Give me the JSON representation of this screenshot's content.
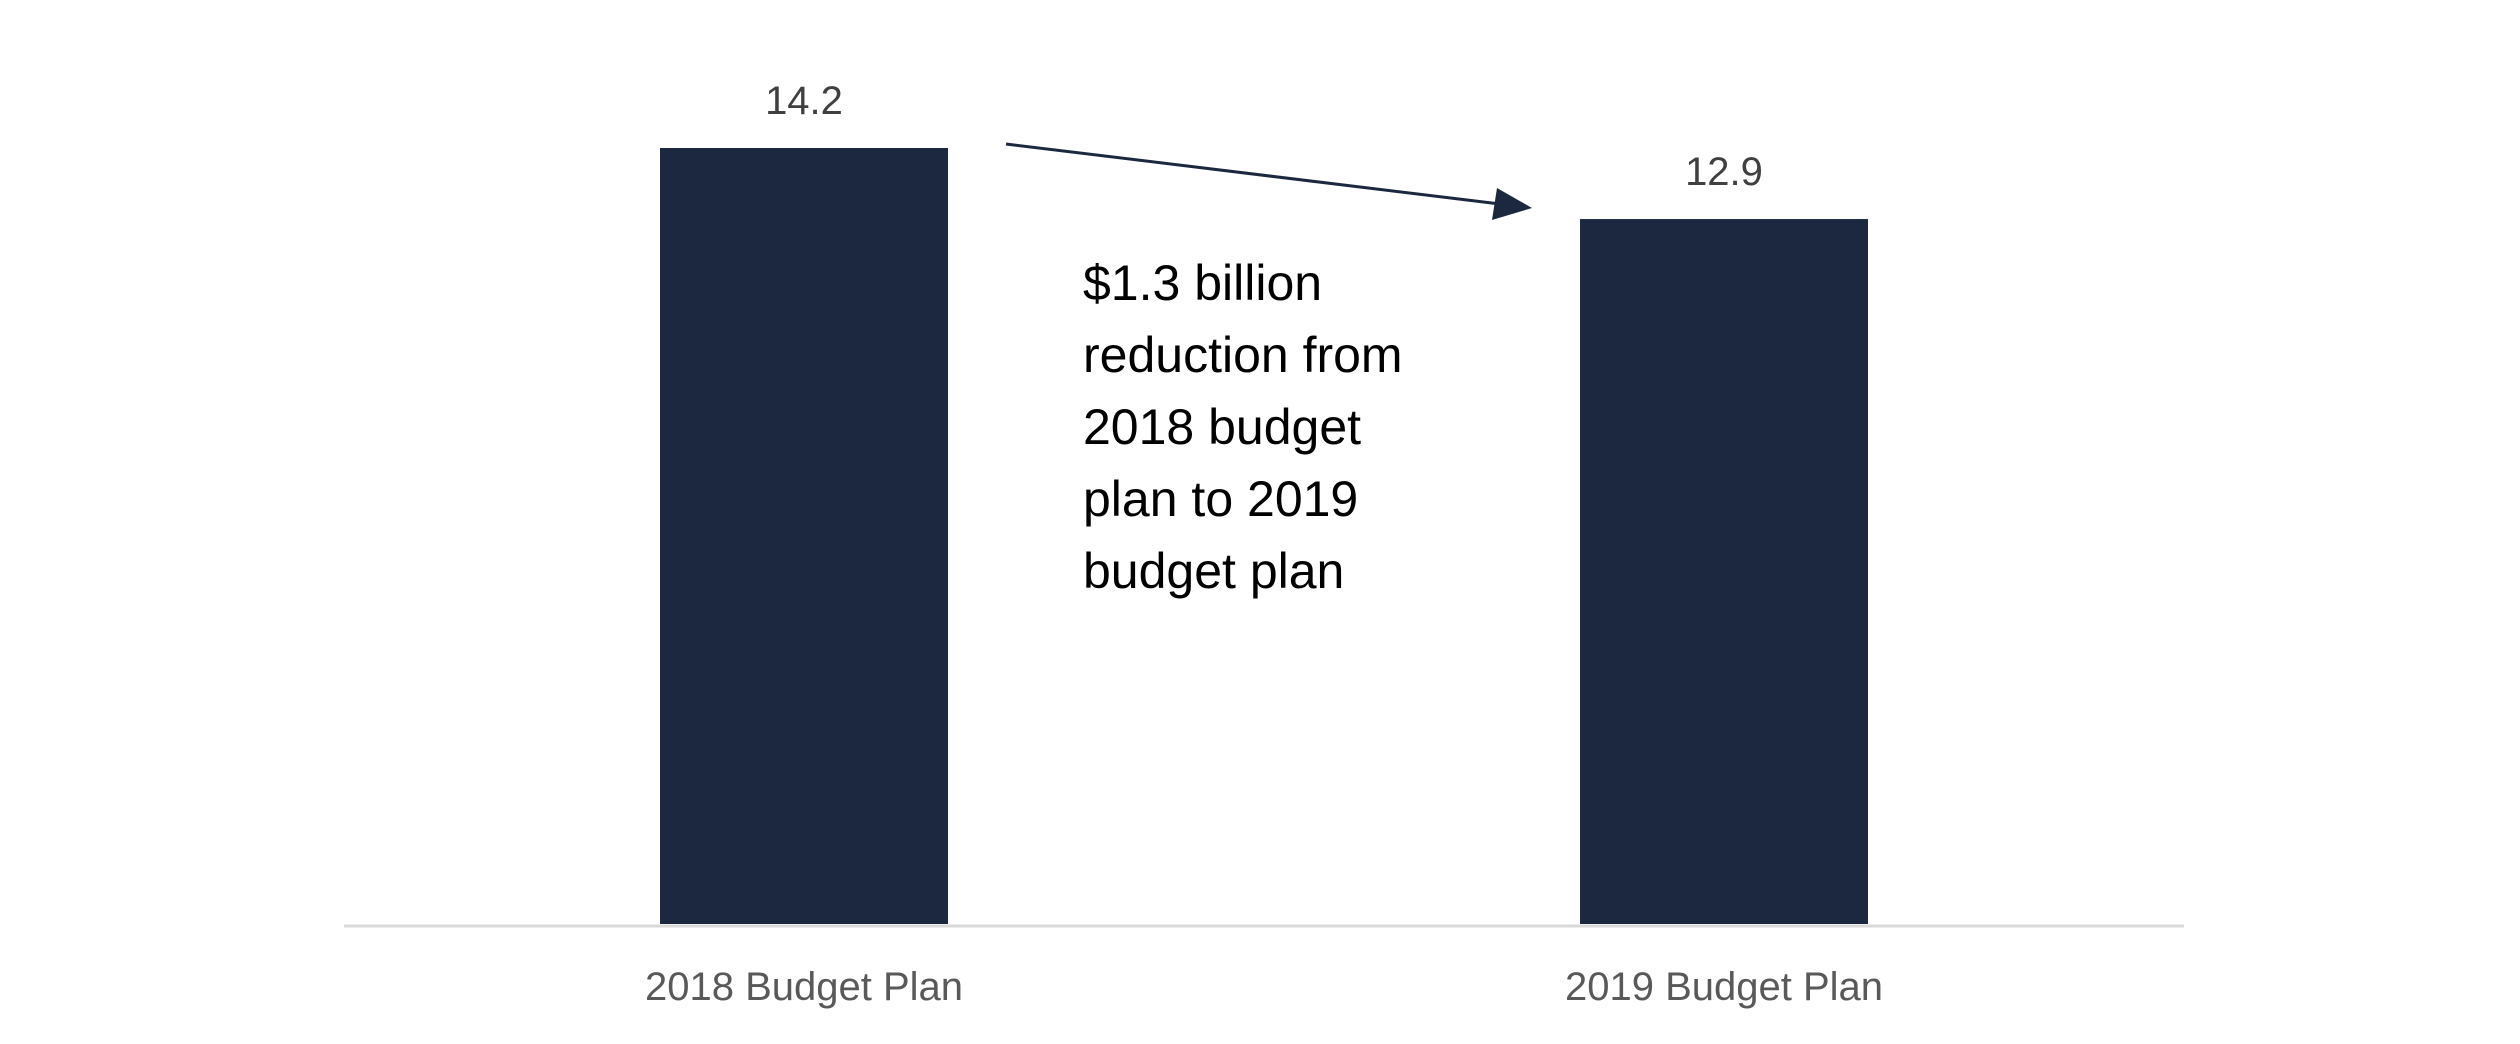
{
  "chart_data": {
    "type": "bar",
    "title": "",
    "xlabel": "",
    "ylabel": "",
    "categories": [
      "2018 Budget Plan",
      "2019 Budget Plan"
    ],
    "values": [
      14.2,
      12.9
    ],
    "data_labels": [
      "14.2",
      "12.9"
    ],
    "ylim": [
      0,
      14.2
    ],
    "grid": false,
    "legend": "none",
    "bar_color": "#1c283f",
    "axis_color": "#d9d9d9",
    "annotation": {
      "lines": [
        "$1.3 billion",
        "reduction from",
        "2018 budget",
        "plan to 2019",
        "budget plan"
      ],
      "arrow": "from 2018 bar to 2019 bar"
    }
  }
}
